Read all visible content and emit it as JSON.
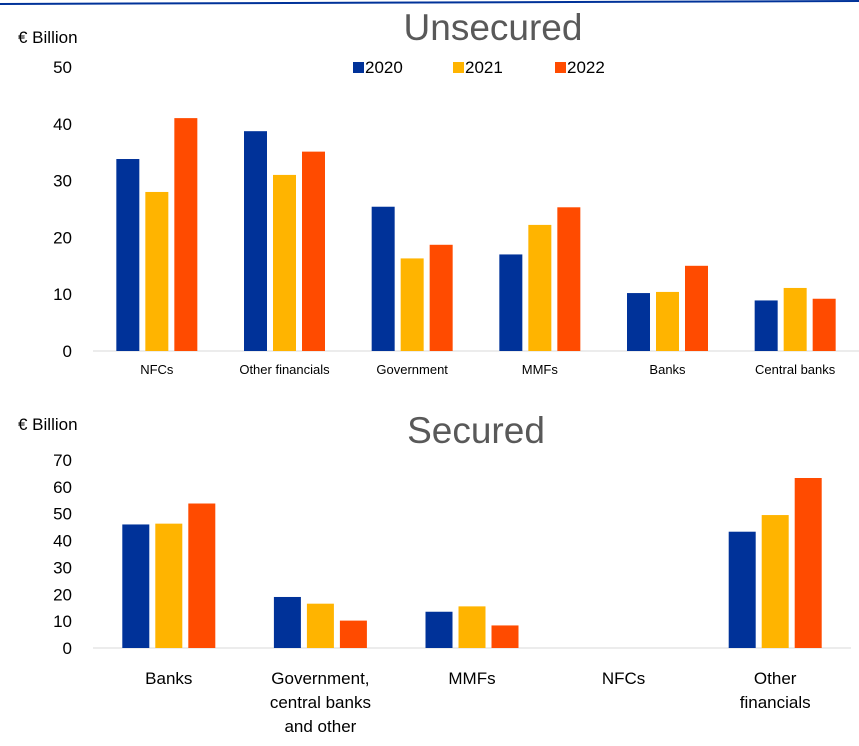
{
  "colors": {
    "series_2020": "#003299",
    "series_2021": "#FFB400",
    "series_2022": "#FF4B00",
    "title": "#595959",
    "axis": "#D9D9D9",
    "header_line": "#003299"
  },
  "chart_data": [
    {
      "type": "bar",
      "title": "Unsecured",
      "ylabel": "€ Billion",
      "xlabel": "",
      "ylim": [
        0,
        50
      ],
      "yticks": [
        0,
        10,
        20,
        30,
        40,
        50
      ],
      "legend": {
        "placement": "top-center"
      },
      "categories": [
        "NFCs",
        "Other financials",
        "Government",
        "MMFs",
        "Banks",
        "Central banks"
      ],
      "series": [
        {
          "name": "2020",
          "values": [
            33.8,
            38.7,
            25.4,
            17.0,
            10.2,
            8.9
          ]
        },
        {
          "name": "2021",
          "values": [
            28.0,
            31.0,
            16.3,
            22.2,
            10.4,
            11.1
          ]
        },
        {
          "name": "2022",
          "values": [
            41.0,
            35.1,
            18.7,
            25.3,
            15.0,
            9.2
          ]
        }
      ],
      "grid": false
    },
    {
      "type": "bar",
      "title": "Secured",
      "ylabel": "€ Billion",
      "xlabel": "",
      "ylim": [
        0,
        70
      ],
      "yticks": [
        0,
        10,
        20,
        30,
        40,
        50,
        60,
        70
      ],
      "categories": [
        [
          "Banks"
        ],
        [
          "Government,",
          "central banks",
          "and other"
        ],
        [
          "MMFs"
        ],
        [
          "NFCs"
        ],
        [
          "Other",
          "financials"
        ]
      ],
      "series": [
        {
          "name": "2020",
          "values": [
            46.0,
            19.0,
            13.5,
            0,
            43.3
          ]
        },
        {
          "name": "2021",
          "values": [
            46.3,
            16.5,
            15.5,
            0,
            49.5
          ]
        },
        {
          "name": "2022",
          "values": [
            53.8,
            10.2,
            8.4,
            0,
            63.3
          ]
        }
      ],
      "grid": false
    }
  ]
}
